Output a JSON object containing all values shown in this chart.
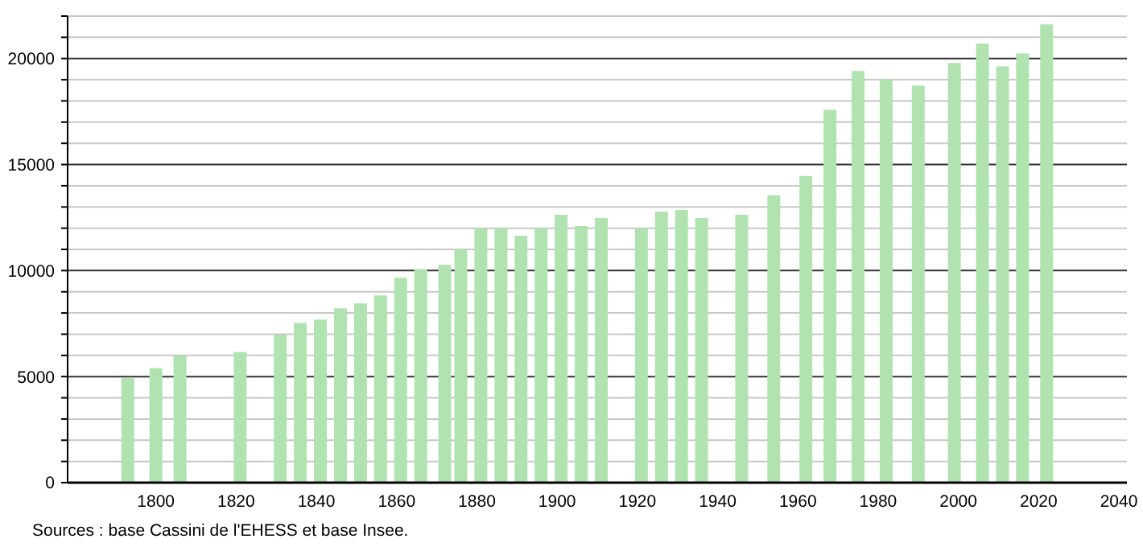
{
  "chart_data": {
    "type": "bar",
    "x": [
      1793,
      1800,
      1806,
      1821,
      1831,
      1836,
      1841,
      1846,
      1851,
      1856,
      1861,
      1866,
      1872,
      1876,
      1881,
      1886,
      1891,
      1896,
      1901,
      1906,
      1911,
      1921,
      1926,
      1931,
      1936,
      1946,
      1954,
      1962,
      1968,
      1975,
      1982,
      1990,
      1999,
      2006,
      2011,
      2016,
      2022
    ],
    "values": [
      4950,
      5400,
      5990,
      6160,
      6980,
      7530,
      7690,
      8220,
      8450,
      8830,
      9660,
      10070,
      10270,
      11010,
      12000,
      12000,
      11640,
      12000,
      12630,
      12100,
      12480,
      12000,
      12780,
      12860,
      12480,
      12630,
      13550,
      14460,
      17580,
      19410,
      19000,
      18720,
      19790,
      20700,
      19630,
      20240,
      21610
    ],
    "color": "#b0e3b0",
    "xlim": [
      1778,
      2042
    ],
    "xticks": [
      1800,
      1820,
      1840,
      1860,
      1880,
      1900,
      1920,
      1940,
      1960,
      1980,
      2000,
      2020,
      2040
    ],
    "ylim": [
      0,
      22000
    ],
    "yticks": [
      0,
      {
        "value": 1000,
        "label": null
      },
      {
        "value": 2000,
        "label": null
      },
      {
        "value": 3000,
        "label": null
      },
      {
        "value": 4000,
        "label": null
      },
      5000,
      {
        "value": 6000,
        "label": null
      },
      {
        "value": 7000,
        "label": null
      },
      {
        "value": 8000,
        "label": null
      },
      {
        "value": 9000,
        "label": null
      },
      10000,
      {
        "value": 11000,
        "label": null
      },
      {
        "value": 12000,
        "label": null
      },
      {
        "value": 13000,
        "label": null
      },
      {
        "value": 14000,
        "label": null
      },
      15000,
      {
        "value": 16000,
        "label": null
      },
      {
        "value": 17000,
        "label": null
      },
      {
        "value": 18000,
        "label": null
      },
      {
        "value": 19000,
        "label": null
      },
      20000,
      {
        "value": 21000,
        "label": null
      },
      {
        "value": 22000,
        "label": null
      }
    ],
    "grid": "y",
    "annotations": [
      "Sources : base Cassini de l'EHESS et base Insee."
    ]
  }
}
